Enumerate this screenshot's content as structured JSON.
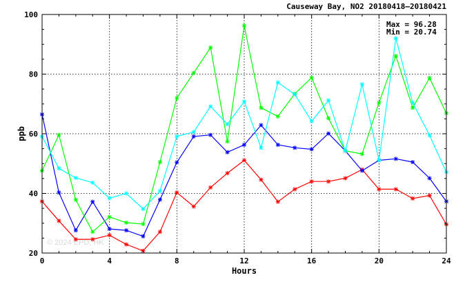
{
  "chart_data": {
    "type": "line",
    "title": "Causeway Bay, NO2 20180418–20180421",
    "xlabel": "Hours",
    "ylabel": "ppb",
    "xlim": [
      0,
      24
    ],
    "ylim": [
      20,
      100
    ],
    "xticks": [
      0,
      4,
      8,
      12,
      16,
      20,
      24
    ],
    "yticks": [
      20,
      40,
      60,
      80,
      100
    ],
    "grid": true,
    "stats": {
      "max": "Max = 96.28",
      "min": "Min = 20.74"
    },
    "watermark": "© 2024 EPD, HK",
    "x": [
      0,
      1,
      2,
      3,
      4,
      5,
      6,
      7,
      8,
      9,
      10,
      11,
      12,
      13,
      14,
      15,
      16,
      17,
      18,
      19,
      20,
      21,
      22,
      23,
      24
    ],
    "series": [
      {
        "color": "#ff0000",
        "values": [
          37.3,
          30.8,
          24.6,
          24.6,
          26.0,
          22.9,
          20.74,
          27.1,
          40.3,
          35.6,
          42.0,
          46.8,
          51.1,
          44.6,
          37.2,
          41.4,
          44.0,
          44.0,
          45.1,
          48.0,
          41.4,
          41.4,
          38.3,
          39.3,
          29.6
        ]
      },
      {
        "color": "#0000ff",
        "values": [
          66.5,
          40.3,
          27.6,
          37.2,
          28.1,
          27.6,
          25.6,
          37.9,
          50.4,
          59.1,
          59.6,
          53.8,
          56.3,
          62.9,
          56.3,
          55.3,
          54.8,
          60.1,
          54.3,
          47.6,
          51.1,
          51.6,
          50.5,
          45.1,
          37.3
        ]
      },
      {
        "color": "#00ff00",
        "values": [
          47.6,
          59.6,
          37.9,
          27.1,
          32.1,
          30.2,
          29.7,
          50.5,
          72.0,
          80.4,
          88.9,
          57.4,
          96.28,
          68.7,
          65.8,
          73.4,
          78.8,
          65.2,
          54.3,
          53.2,
          70.4,
          86.1,
          68.7,
          78.7,
          66.9
        ]
      },
      {
        "color": "#00ffff",
        "values": [
          59.1,
          48.4,
          45.2,
          43.6,
          38.4,
          40.0,
          34.8,
          40.8,
          59.1,
          60.6,
          69.2,
          63.2,
          70.8,
          55.3,
          77.2,
          73.2,
          64.2,
          71.2,
          54.3,
          76.6,
          51.1,
          92.0,
          70.4,
          59.5,
          47.1
        ]
      }
    ]
  }
}
